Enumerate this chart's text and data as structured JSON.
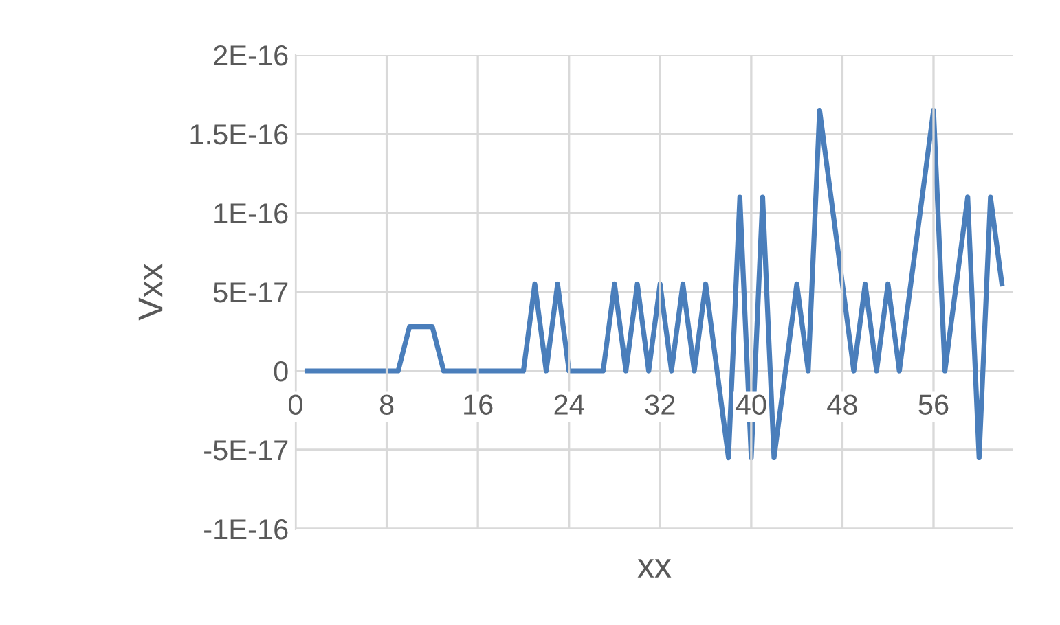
{
  "chart_data": {
    "type": "line",
    "xlabel": "xx",
    "ylabel": "Vxx",
    "x": [
      1,
      2,
      3,
      4,
      5,
      6,
      7,
      8,
      9,
      10,
      11,
      12,
      13,
      14,
      15,
      16,
      17,
      18,
      19,
      20,
      21,
      22,
      23,
      24,
      25,
      26,
      27,
      28,
      29,
      30,
      31,
      32,
      33,
      34,
      35,
      36,
      37,
      38,
      39,
      40,
      41,
      42,
      43,
      44,
      45,
      46,
      47,
      48,
      49,
      50,
      51,
      52,
      53,
      54,
      55,
      56,
      57,
      58,
      59,
      60,
      61,
      62
    ],
    "series": [
      {
        "color": "#4a7ebb",
        "values": [
          0,
          0,
          0,
          0,
          0,
          0,
          0,
          0,
          0,
          2.8e-17,
          2.8e-17,
          2.8e-17,
          0,
          0,
          0,
          0,
          0,
          0,
          0,
          0,
          5.5e-17,
          0,
          5.5e-17,
          0,
          0,
          0,
          0,
          5.5e-17,
          0,
          5.5e-17,
          0,
          5.5e-17,
          0,
          5.5e-17,
          0,
          5.5e-17,
          0,
          -5.5e-17,
          1.1e-16,
          -5.5e-17,
          1.1e-16,
          -5.5e-17,
          0,
          5.5e-17,
          0,
          1.65e-16,
          1.1e-16,
          5.5e-17,
          0,
          5.5e-17,
          0,
          5.5e-17,
          0,
          5.5e-17,
          1.1e-16,
          1.65e-16,
          0,
          5.5e-17,
          1.1e-16,
          -5.5e-17,
          1.1e-16,
          5.5e-17
        ]
      }
    ],
    "xlim": [
      0,
      63
    ],
    "xticks": [
      0,
      8,
      16,
      24,
      32,
      40,
      48,
      56
    ],
    "ylim": [
      -1e-16,
      2e-16
    ],
    "yticks": [
      {
        "value": -1e-16,
        "label": "-1E-16"
      },
      {
        "value": -5e-17,
        "label": "-5E-17"
      },
      {
        "value": 0,
        "label": "0"
      },
      {
        "value": 5e-17,
        "label": "5E-17"
      },
      {
        "value": 1e-16,
        "label": "1E-16"
      },
      {
        "value": 1.5e-16,
        "label": "1.5E-16"
      },
      {
        "value": 2e-16,
        "label": "2E-16"
      }
    ],
    "grid": true,
    "marker": "none",
    "line_style": "solid"
  }
}
